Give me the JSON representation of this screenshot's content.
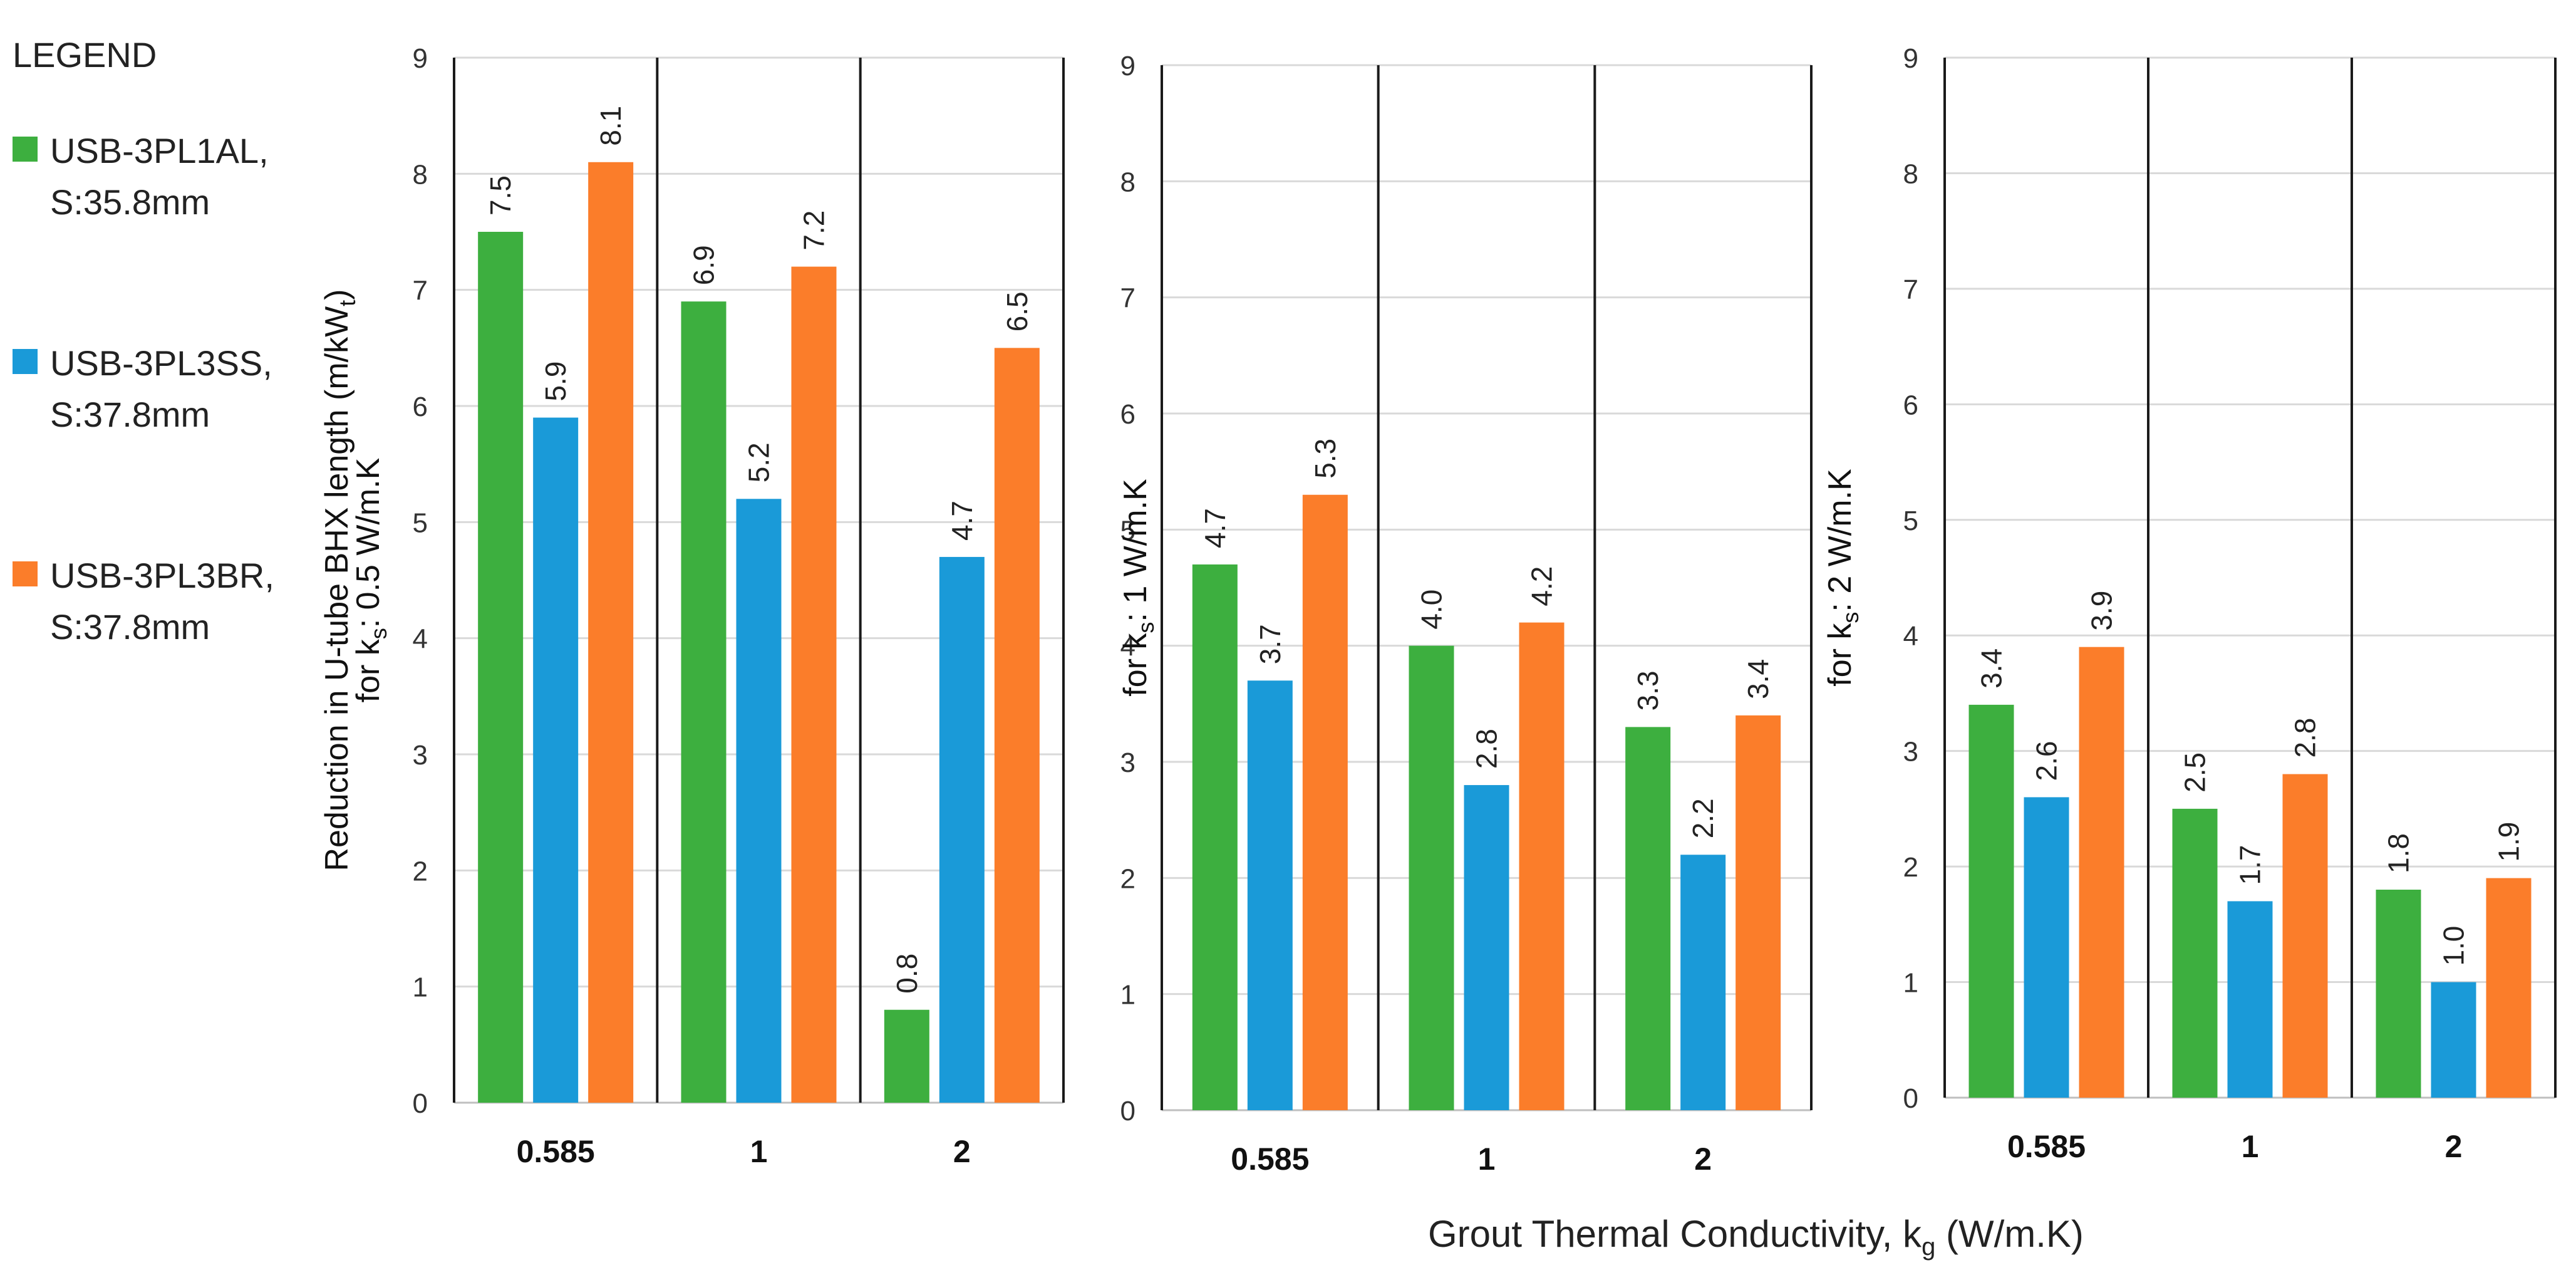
{
  "legend": {
    "title": "LEGEND",
    "items": [
      {
        "line1": "USB-3PL1AL,",
        "line2": "S:35.8mm",
        "color": "#3daf3f"
      },
      {
        "line1": "USB-3PL3SS,",
        "line2": "S:37.8mm",
        "color": "#1a9ad8"
      },
      {
        "line1": "USB-3PL3BR,",
        "line2": "S:37.8mm",
        "color": "#fb7d2a"
      }
    ]
  },
  "x_axis_title": {
    "main": "Grout Thermal Conductivity,  k",
    "sub": "g",
    "unit": " (W/m.K)"
  },
  "chart_data": [
    {
      "type": "bar",
      "ylabel_lines": [
        {
          "text": "Reduction in U-tube BHX length (m/kW",
          "sub": "t",
          "after": ")"
        },
        {
          "text": "for k",
          "sub": "s",
          "after": ": 0.5  W/m.K"
        }
      ],
      "ylim": [
        0,
        9
      ],
      "yticks": [
        0,
        1,
        2,
        3,
        4,
        5,
        6,
        7,
        8,
        9
      ],
      "categories": [
        "0.585",
        "1",
        "2"
      ],
      "series": [
        {
          "name": "USB-3PL1AL, S:35.8mm",
          "values": [
            7.5,
            6.9,
            0.8
          ]
        },
        {
          "name": "USB-3PL3SS, S:37.8mm",
          "values": [
            5.9,
            5.2,
            4.7
          ]
        },
        {
          "name": "USB-3PL3BR, S:37.8mm",
          "values": [
            8.1,
            7.2,
            6.5
          ]
        }
      ],
      "data_labels": [
        [
          "7.5",
          "6.9",
          "0.8"
        ],
        [
          "5.9",
          "5.2",
          "4.7"
        ],
        [
          "8.1",
          "7.2",
          "6.5"
        ]
      ],
      "grid": true,
      "colors": [
        "#3daf3f",
        "#1a9ad8",
        "#fb7d2a"
      ]
    },
    {
      "type": "bar",
      "ylabel_lines": [
        {
          "text": "for k",
          "sub": "s",
          "after": ": 1 W/m.K"
        }
      ],
      "ylim": [
        0,
        9
      ],
      "yticks": [
        0,
        1,
        2,
        3,
        4,
        5,
        6,
        7,
        8,
        9
      ],
      "categories": [
        "0.585",
        "1",
        "2"
      ],
      "series": [
        {
          "name": "USB-3PL1AL, S:35.8mm",
          "values": [
            4.7,
            4.0,
            3.3
          ]
        },
        {
          "name": "USB-3PL3SS, S:37.8mm",
          "values": [
            3.7,
            2.8,
            2.2
          ]
        },
        {
          "name": "USB-3PL3BR, S:37.8mm",
          "values": [
            5.3,
            4.2,
            3.4
          ]
        }
      ],
      "data_labels": [
        [
          "4.7",
          "4.0",
          "3.3"
        ],
        [
          "3.7",
          "2.8",
          "2.2"
        ],
        [
          "5.3",
          "4.2",
          "3.4"
        ]
      ],
      "grid": true,
      "colors": [
        "#3daf3f",
        "#1a9ad8",
        "#fb7d2a"
      ]
    },
    {
      "type": "bar",
      "ylabel_lines": [
        {
          "text": "for k",
          "sub": "s",
          "after": ": 2 W/m.K"
        }
      ],
      "ylim": [
        0,
        9
      ],
      "yticks": [
        0,
        1,
        2,
        3,
        4,
        5,
        6,
        7,
        8,
        9
      ],
      "categories": [
        "0.585",
        "1",
        "2"
      ],
      "series": [
        {
          "name": "USB-3PL1AL, S:35.8mm",
          "values": [
            3.4,
            2.5,
            1.8
          ]
        },
        {
          "name": "USB-3PL3SS, S:37.8mm",
          "values": [
            2.6,
            1.7,
            1.0
          ]
        },
        {
          "name": "USB-3PL3BR, S:37.8mm",
          "values": [
            3.9,
            2.8,
            1.9
          ]
        }
      ],
      "data_labels": [
        [
          "3.4",
          "2.5",
          "1.8"
        ],
        [
          "2.6",
          "1.7",
          "1.0"
        ],
        [
          "3.9",
          "2.8",
          "1.9"
        ]
      ],
      "grid": true,
      "colors": [
        "#3daf3f",
        "#1a9ad8",
        "#fb7d2a"
      ]
    }
  ]
}
